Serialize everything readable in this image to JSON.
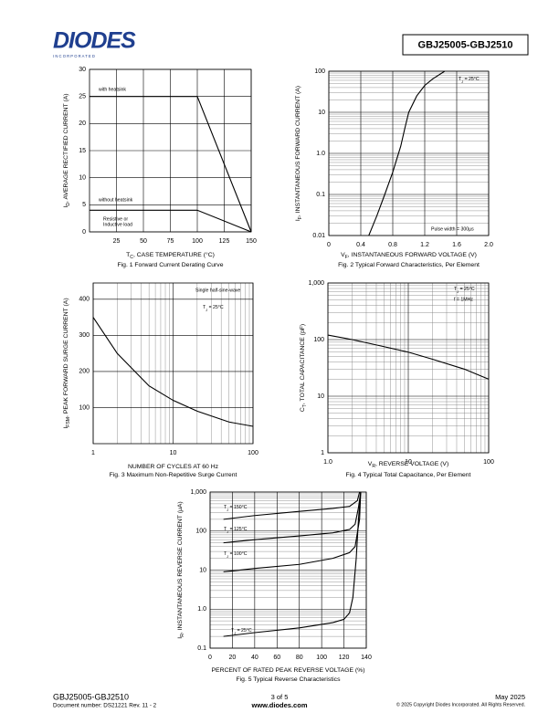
{
  "header": {
    "logo": "DIODES",
    "logo_sub": "I N C O R P O R A T E D",
    "title": "GBJ25005-GBJ2510"
  },
  "footer": {
    "part": "GBJ25005-GBJ2510",
    "doc": "Document number: DS21221 Rev. 11 - 2",
    "page": "3 of 5",
    "url": "www.diodes.com",
    "date": "May 2025",
    "copyright": "© 2025 Copyright Diodes Incorporated. All Rights Reserved."
  },
  "chart_data": [
    {
      "type": "line",
      "caption": "Fig. 1  Forward Current Derating Curve",
      "xlabel": [
        "T",
        "C",
        ", CASE TEMPERATURE (°C)"
      ],
      "ylabel": [
        "I",
        "D",
        ", AVERAGE RECTIFIED CURRENT (A)"
      ],
      "xlim": [
        0,
        150
      ],
      "xticks": [
        25,
        50,
        75,
        100,
        125,
        150
      ],
      "ylim": [
        0,
        30
      ],
      "yticks": [
        0,
        5,
        10,
        15,
        20,
        25,
        30
      ],
      "grid": true,
      "series": [
        {
          "name": "with heatsink",
          "color": "#000000",
          "x": [
            0,
            100,
            150
          ],
          "values": [
            25,
            25,
            0
          ]
        },
        {
          "name": "without heatsink",
          "color": "#000000",
          "x": [
            0,
            100,
            150
          ],
          "values": [
            4,
            4,
            0
          ]
        }
      ],
      "annotations": [
        "Resistive or",
        "Inductive load"
      ]
    },
    {
      "type": "line",
      "caption": "Fig. 2  Typical Forward Characteristics, Per Element",
      "xlabel": [
        "V",
        "F",
        ", INSTANTANEOUS FORWARD VOLTAGE (V)"
      ],
      "ylabel": [
        "I",
        "F",
        ", INSTANTANEOUS FORWARD CURRENT (A)"
      ],
      "xlim": [
        0,
        2
      ],
      "xticks": [
        0,
        0.4,
        0.8,
        1.2,
        1.6,
        {
          "value": 2,
          "label": "2.0"
        }
      ],
      "ylim": [
        0.01,
        100
      ],
      "yscale": "log",
      "yticks": [
        0.01,
        0.1,
        {
          "value": 1,
          "label": "1.0"
        },
        10,
        100
      ],
      "grid": true,
      "series": [
        {
          "color": "#000000",
          "x": [
            0.5,
            0.6,
            0.7,
            0.8,
            0.9,
            0.95,
            1.0,
            1.1,
            1.2,
            1.3,
            1.45
          ],
          "values": [
            0.01,
            0.03,
            0.1,
            0.35,
            1.5,
            4,
            10,
            25,
            45,
            65,
            100
          ]
        }
      ],
      "annotations": [
        [
          "T",
          "J",
          " = 25°C"
        ],
        "Pulse width = 300µs"
      ]
    },
    {
      "type": "line",
      "caption": "Fig. 3  Maximum Non-Repetitive Surge Current",
      "xlabel": "NUMBER OF CYCLES AT 60 Hz",
      "ylabel": [
        "I",
        "FSM",
        ", PEAK FORWARD SURGE CURRENT (A)"
      ],
      "xlim": [
        1,
        100
      ],
      "xscale": "log",
      "xticks": [
        1,
        10,
        100
      ],
      "ylim": [
        0,
        445
      ],
      "yticks": [
        100,
        200,
        300,
        400
      ],
      "grid": true,
      "series": [
        {
          "color": "#000000",
          "x": [
            1,
            2,
            5,
            10,
            20,
            50,
            100
          ],
          "values": [
            350,
            250,
            160,
            120,
            90,
            60,
            48
          ]
        }
      ],
      "annotations": [
        "Single half-sine-wave",
        [
          "T",
          "J",
          " = 25°C"
        ]
      ]
    },
    {
      "type": "line",
      "caption": "Fig. 4  Typical Total Capacitance, Per Element",
      "xlabel": [
        "V",
        "R",
        ", REVERSE VOLTAGE (V)"
      ],
      "ylabel": [
        "C",
        "T",
        ", TOTAL CAPACITANCE (pF)"
      ],
      "xlim": [
        1,
        100
      ],
      "xscale": "log",
      "xticks": [
        {
          "value": 1,
          "label": "1.0"
        },
        10,
        100
      ],
      "ylim": [
        1,
        1000
      ],
      "yscale": "log",
      "yticks": [
        1,
        10,
        100,
        {
          "value": 1000,
          "label": "1,000"
        }
      ],
      "grid": true,
      "series": [
        {
          "color": "#000000",
          "x": [
            1,
            2,
            5,
            10,
            20,
            50,
            100
          ],
          "values": [
            120,
            100,
            75,
            60,
            45,
            30,
            20
          ]
        }
      ],
      "annotations": [
        [
          "T",
          "J",
          " = 25°C"
        ],
        "f = 1MHz"
      ]
    },
    {
      "type": "line",
      "caption": "Fig. 5  Typical Reverse Characteristics",
      "xlabel": "PERCENT OF RATED PEAK REVERSE VOLTAGE (%)",
      "ylabel": [
        "I",
        "R",
        ", INSTANTANEOUS REVERSE CURRENT (µA)"
      ],
      "xlim": [
        0,
        140
      ],
      "xticks": [
        0,
        20,
        40,
        60,
        80,
        100,
        120,
        140
      ],
      "ylim": [
        0.1,
        1000
      ],
      "yscale": "log",
      "yticks": [
        0.1,
        {
          "value": 1,
          "label": "1.0"
        },
        10,
        100,
        {
          "value": 1000,
          "label": "1,000"
        }
      ],
      "grid": true,
      "series": [
        {
          "name": [
            "T",
            "J",
            " = 150°C"
          ],
          "color": "#000000",
          "x": [
            12,
            40,
            80,
            110,
            125,
            132,
            134
          ],
          "values": [
            200,
            250,
            320,
            380,
            430,
            600,
            1000
          ]
        },
        {
          "name": [
            "T",
            "J",
            " = 125°C"
          ],
          "color": "#000000",
          "x": [
            12,
            40,
            80,
            110,
            125,
            130,
            133,
            135
          ],
          "values": [
            50,
            60,
            75,
            90,
            110,
            150,
            400,
            1000
          ]
        },
        {
          "name": [
            "T",
            "J",
            " = 100°C"
          ],
          "color": "#000000",
          "x": [
            12,
            40,
            80,
            110,
            125,
            130,
            134,
            135
          ],
          "values": [
            9,
            11,
            14,
            20,
            28,
            40,
            200,
            1000
          ]
        },
        {
          "name": [
            "T",
            "J",
            " = 25°C"
          ],
          "color": "#000000",
          "x": [
            12,
            40,
            80,
            110,
            120,
            125,
            128,
            131,
            133,
            135
          ],
          "values": [
            0.2,
            0.25,
            0.33,
            0.45,
            0.55,
            0.8,
            2,
            20,
            200,
            1000
          ]
        }
      ]
    }
  ]
}
